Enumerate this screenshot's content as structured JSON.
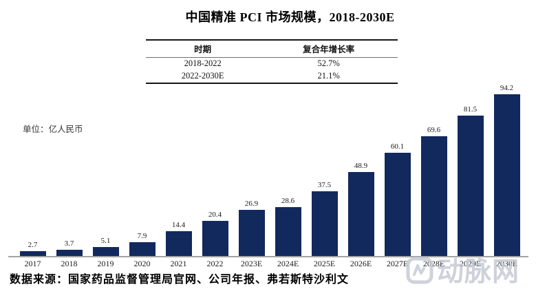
{
  "page": {
    "title": "中国精准 PCI 市场规模，2018-2030E",
    "unit_label": "单位：亿人民币",
    "source": "数据来源：国家药品监督管理局官网、公司年报、弗若斯特沙利文",
    "watermark_text": "动脉网",
    "watermark_icon": "vcbeat-logo-icon"
  },
  "cagr_table": {
    "headers": [
      "时期",
      "复合年增长率"
    ],
    "rows": [
      [
        "2018-2022",
        "52.7%"
      ],
      [
        "2022-2030E",
        "21.1%"
      ]
    ]
  },
  "chart_data": {
    "type": "bar",
    "title": "中国精准 PCI 市场规模，2018-2030E",
    "categories": [
      "2017",
      "2018",
      "2019",
      "2020",
      "2021",
      "2022",
      "2023E",
      "2024E",
      "2025E",
      "2026E",
      "2027E",
      "2028E",
      "2029E",
      "2030E"
    ],
    "values": [
      2.7,
      3.7,
      5.1,
      7.9,
      14.4,
      20.4,
      26.9,
      28.6,
      37.5,
      48.9,
      60.1,
      69.6,
      81.5,
      94.2
    ],
    "xlabel": "",
    "ylabel": "亿人民币",
    "ylim": [
      0,
      100
    ],
    "grid": false,
    "legend": false,
    "data_labels": true,
    "bar_color": "#12295e",
    "axis_color": "#a3a3a3"
  }
}
